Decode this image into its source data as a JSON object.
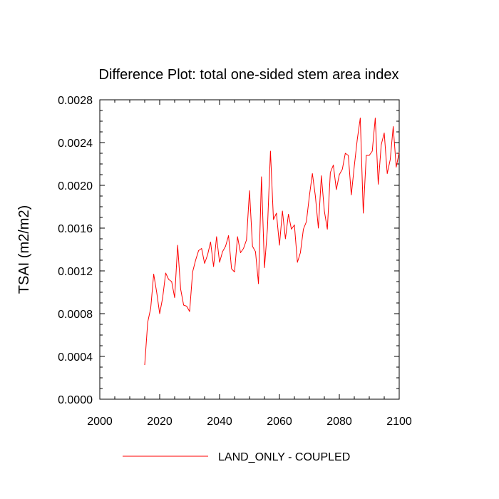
{
  "chart_data": {
    "type": "line",
    "title": "Difference Plot: total one-sided stem area index",
    "xlabel": "",
    "ylabel": "TSAI  (m2/m2)",
    "xlim": [
      2000,
      2100
    ],
    "ylim": [
      0.0,
      0.0028
    ],
    "x_ticks": [
      "2000",
      "2020",
      "2040",
      "2060",
      "2080",
      "2100"
    ],
    "y_ticks": [
      "0.0000",
      "0.0004",
      "0.0008",
      "0.0012",
      "0.0016",
      "0.0020",
      "0.0024",
      "0.0028"
    ],
    "legend_position": "bottom",
    "series": [
      {
        "name": "LAND_ONLY - COUPLED",
        "color": "#ff0000",
        "x": [
          2015,
          2016,
          2017,
          2018,
          2019,
          2020,
          2021,
          2022,
          2023,
          2024,
          2025,
          2026,
          2027,
          2028,
          2029,
          2030,
          2031,
          2032,
          2033,
          2034,
          2035,
          2036,
          2037,
          2038,
          2039,
          2040,
          2041,
          2042,
          2043,
          2044,
          2045,
          2046,
          2047,
          2048,
          2049,
          2050,
          2051,
          2052,
          2053,
          2054,
          2055,
          2056,
          2057,
          2058,
          2059,
          2060,
          2061,
          2062,
          2063,
          2064,
          2065,
          2066,
          2067,
          2068,
          2069,
          2070,
          2071,
          2072,
          2073,
          2074,
          2075,
          2076,
          2077,
          2078,
          2079,
          2080,
          2081,
          2082,
          2083,
          2084,
          2085,
          2086,
          2087,
          2088,
          2089,
          2090,
          2091,
          2092,
          2093,
          2094,
          2095,
          2096,
          2097,
          2098,
          2099,
          2100
        ],
        "y": [
          0.00032,
          0.00072,
          0.00085,
          0.00117,
          0.001,
          0.0008,
          0.00095,
          0.00118,
          0.00112,
          0.0011,
          0.00095,
          0.00144,
          0.00103,
          0.00088,
          0.00087,
          0.00082,
          0.00119,
          0.0013,
          0.00139,
          0.00141,
          0.00127,
          0.00135,
          0.00147,
          0.00124,
          0.00152,
          0.00128,
          0.00138,
          0.00143,
          0.00153,
          0.00122,
          0.00119,
          0.00152,
          0.00137,
          0.00141,
          0.00149,
          0.00195,
          0.00143,
          0.00138,
          0.00108,
          0.00208,
          0.00123,
          0.0016,
          0.00232,
          0.00168,
          0.00174,
          0.00144,
          0.00176,
          0.0015,
          0.00173,
          0.00159,
          0.00163,
          0.00128,
          0.00137,
          0.00159,
          0.00166,
          0.0019,
          0.00211,
          0.0019,
          0.0016,
          0.00209,
          0.00176,
          0.00159,
          0.00212,
          0.00219,
          0.00196,
          0.0021,
          0.00215,
          0.0023,
          0.00228,
          0.00191,
          0.00218,
          0.00243,
          0.00263,
          0.00174,
          0.00228,
          0.00228,
          0.00232,
          0.00263,
          0.00201,
          0.00238,
          0.00249,
          0.00211,
          0.00224,
          0.00255,
          0.00217,
          0.00231
        ]
      }
    ]
  }
}
